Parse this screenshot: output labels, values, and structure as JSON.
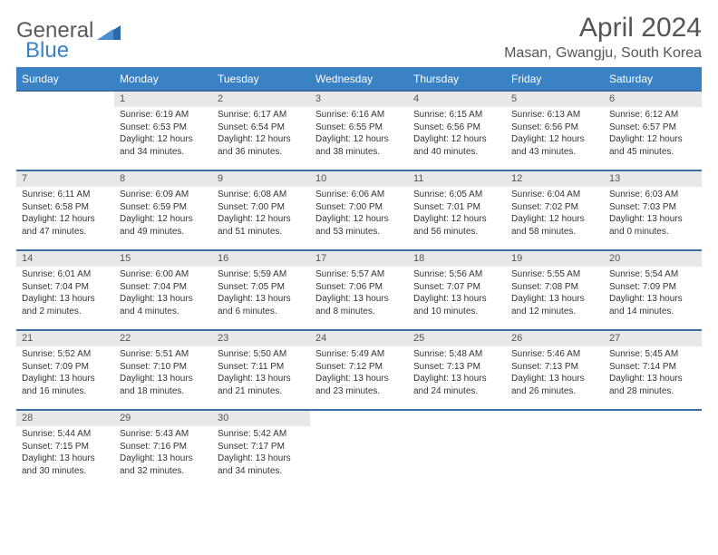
{
  "brand": {
    "part1": "General",
    "part2": "Blue"
  },
  "title": {
    "month": "April 2024",
    "location": "Masan, Gwangju, South Korea"
  },
  "colors": {
    "header_bg": "#3b82c4",
    "row_sep": "#3b6ea0",
    "daynum_bg": "#e8e8e8"
  },
  "weekdays": [
    "Sunday",
    "Monday",
    "Tuesday",
    "Wednesday",
    "Thursday",
    "Friday",
    "Saturday"
  ],
  "weeks": [
    {
      "days": [
        {
          "num": "",
          "sunrise": "",
          "sunset": "",
          "daylight": ""
        },
        {
          "num": "1",
          "sunrise": "Sunrise: 6:19 AM",
          "sunset": "Sunset: 6:53 PM",
          "daylight": "Daylight: 12 hours and 34 minutes."
        },
        {
          "num": "2",
          "sunrise": "Sunrise: 6:17 AM",
          "sunset": "Sunset: 6:54 PM",
          "daylight": "Daylight: 12 hours and 36 minutes."
        },
        {
          "num": "3",
          "sunrise": "Sunrise: 6:16 AM",
          "sunset": "Sunset: 6:55 PM",
          "daylight": "Daylight: 12 hours and 38 minutes."
        },
        {
          "num": "4",
          "sunrise": "Sunrise: 6:15 AM",
          "sunset": "Sunset: 6:56 PM",
          "daylight": "Daylight: 12 hours and 40 minutes."
        },
        {
          "num": "5",
          "sunrise": "Sunrise: 6:13 AM",
          "sunset": "Sunset: 6:56 PM",
          "daylight": "Daylight: 12 hours and 43 minutes."
        },
        {
          "num": "6",
          "sunrise": "Sunrise: 6:12 AM",
          "sunset": "Sunset: 6:57 PM",
          "daylight": "Daylight: 12 hours and 45 minutes."
        }
      ]
    },
    {
      "days": [
        {
          "num": "7",
          "sunrise": "Sunrise: 6:11 AM",
          "sunset": "Sunset: 6:58 PM",
          "daylight": "Daylight: 12 hours and 47 minutes."
        },
        {
          "num": "8",
          "sunrise": "Sunrise: 6:09 AM",
          "sunset": "Sunset: 6:59 PM",
          "daylight": "Daylight: 12 hours and 49 minutes."
        },
        {
          "num": "9",
          "sunrise": "Sunrise: 6:08 AM",
          "sunset": "Sunset: 7:00 PM",
          "daylight": "Daylight: 12 hours and 51 minutes."
        },
        {
          "num": "10",
          "sunrise": "Sunrise: 6:06 AM",
          "sunset": "Sunset: 7:00 PM",
          "daylight": "Daylight: 12 hours and 53 minutes."
        },
        {
          "num": "11",
          "sunrise": "Sunrise: 6:05 AM",
          "sunset": "Sunset: 7:01 PM",
          "daylight": "Daylight: 12 hours and 56 minutes."
        },
        {
          "num": "12",
          "sunrise": "Sunrise: 6:04 AM",
          "sunset": "Sunset: 7:02 PM",
          "daylight": "Daylight: 12 hours and 58 minutes."
        },
        {
          "num": "13",
          "sunrise": "Sunrise: 6:03 AM",
          "sunset": "Sunset: 7:03 PM",
          "daylight": "Daylight: 13 hours and 0 minutes."
        }
      ]
    },
    {
      "days": [
        {
          "num": "14",
          "sunrise": "Sunrise: 6:01 AM",
          "sunset": "Sunset: 7:04 PM",
          "daylight": "Daylight: 13 hours and 2 minutes."
        },
        {
          "num": "15",
          "sunrise": "Sunrise: 6:00 AM",
          "sunset": "Sunset: 7:04 PM",
          "daylight": "Daylight: 13 hours and 4 minutes."
        },
        {
          "num": "16",
          "sunrise": "Sunrise: 5:59 AM",
          "sunset": "Sunset: 7:05 PM",
          "daylight": "Daylight: 13 hours and 6 minutes."
        },
        {
          "num": "17",
          "sunrise": "Sunrise: 5:57 AM",
          "sunset": "Sunset: 7:06 PM",
          "daylight": "Daylight: 13 hours and 8 minutes."
        },
        {
          "num": "18",
          "sunrise": "Sunrise: 5:56 AM",
          "sunset": "Sunset: 7:07 PM",
          "daylight": "Daylight: 13 hours and 10 minutes."
        },
        {
          "num": "19",
          "sunrise": "Sunrise: 5:55 AM",
          "sunset": "Sunset: 7:08 PM",
          "daylight": "Daylight: 13 hours and 12 minutes."
        },
        {
          "num": "20",
          "sunrise": "Sunrise: 5:54 AM",
          "sunset": "Sunset: 7:09 PM",
          "daylight": "Daylight: 13 hours and 14 minutes."
        }
      ]
    },
    {
      "days": [
        {
          "num": "21",
          "sunrise": "Sunrise: 5:52 AM",
          "sunset": "Sunset: 7:09 PM",
          "daylight": "Daylight: 13 hours and 16 minutes."
        },
        {
          "num": "22",
          "sunrise": "Sunrise: 5:51 AM",
          "sunset": "Sunset: 7:10 PM",
          "daylight": "Daylight: 13 hours and 18 minutes."
        },
        {
          "num": "23",
          "sunrise": "Sunrise: 5:50 AM",
          "sunset": "Sunset: 7:11 PM",
          "daylight": "Daylight: 13 hours and 21 minutes."
        },
        {
          "num": "24",
          "sunrise": "Sunrise: 5:49 AM",
          "sunset": "Sunset: 7:12 PM",
          "daylight": "Daylight: 13 hours and 23 minutes."
        },
        {
          "num": "25",
          "sunrise": "Sunrise: 5:48 AM",
          "sunset": "Sunset: 7:13 PM",
          "daylight": "Daylight: 13 hours and 24 minutes."
        },
        {
          "num": "26",
          "sunrise": "Sunrise: 5:46 AM",
          "sunset": "Sunset: 7:13 PM",
          "daylight": "Daylight: 13 hours and 26 minutes."
        },
        {
          "num": "27",
          "sunrise": "Sunrise: 5:45 AM",
          "sunset": "Sunset: 7:14 PM",
          "daylight": "Daylight: 13 hours and 28 minutes."
        }
      ]
    },
    {
      "days": [
        {
          "num": "28",
          "sunrise": "Sunrise: 5:44 AM",
          "sunset": "Sunset: 7:15 PM",
          "daylight": "Daylight: 13 hours and 30 minutes."
        },
        {
          "num": "29",
          "sunrise": "Sunrise: 5:43 AM",
          "sunset": "Sunset: 7:16 PM",
          "daylight": "Daylight: 13 hours and 32 minutes."
        },
        {
          "num": "30",
          "sunrise": "Sunrise: 5:42 AM",
          "sunset": "Sunset: 7:17 PM",
          "daylight": "Daylight: 13 hours and 34 minutes."
        },
        {
          "num": "",
          "sunrise": "",
          "sunset": "",
          "daylight": ""
        },
        {
          "num": "",
          "sunrise": "",
          "sunset": "",
          "daylight": ""
        },
        {
          "num": "",
          "sunrise": "",
          "sunset": "",
          "daylight": ""
        },
        {
          "num": "",
          "sunrise": "",
          "sunset": "",
          "daylight": ""
        }
      ]
    }
  ]
}
